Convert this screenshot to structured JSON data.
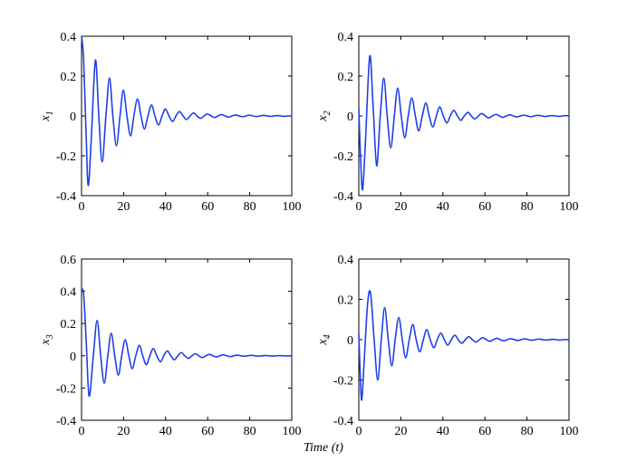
{
  "figure": {
    "shared_xlabel": "Time (t)",
    "line_color": "#1f3fe8"
  },
  "chart_data": [
    {
      "type": "line",
      "ylabel": "x",
      "ylabel_sub": "1",
      "xlim": [
        0,
        100
      ],
      "ylim": [
        -0.4,
        0.4
      ],
      "xticks": [
        0,
        20,
        40,
        60,
        80,
        100
      ],
      "yticks": [
        -0.4,
        -0.2,
        0,
        0.2,
        0.4
      ],
      "xtick_labels": [
        "0",
        "20",
        "40",
        "60",
        "80",
        "100"
      ],
      "ytick_labels": [
        "-0.4",
        "-0.2",
        "0",
        "0.2",
        "0.4"
      ],
      "grid": false,
      "series": [
        {
          "x": [
            0,
            1,
            2.2,
            3.2,
            4.7,
            6.6,
            8.2,
            9.8,
            11.6,
            13.3,
            14.9,
            16.6,
            18.3,
            19.9,
            21.6,
            23.3,
            24.9,
            26.6,
            28.3,
            29.9,
            31.6,
            33.3,
            34.9,
            36.6,
            38.3,
            39.9,
            41.6,
            43.3,
            44.9,
            46.6,
            48.3,
            49.9,
            51.6,
            53.3,
            54.9,
            56.6,
            58.3,
            59.9,
            61.6,
            63.3,
            64.9,
            66.6,
            68.3,
            69.9,
            71.6,
            73.3,
            74.9,
            76.6,
            78.3,
            79.9,
            81.6,
            83.3,
            84.9,
            86.6,
            88.3,
            89.9,
            91.6,
            93.3,
            94.9,
            96.6,
            98.3,
            100
          ],
          "y": [
            0.4,
            0.28,
            -0.1,
            -0.35,
            -0.1,
            0.28,
            0.0,
            -0.23,
            0.0,
            0.19,
            0.0,
            -0.15,
            0.0,
            0.13,
            0.0,
            -0.1,
            0.0,
            0.085,
            0.0,
            -0.065,
            0.0,
            0.055,
            0.0,
            -0.045,
            0.0,
            0.035,
            0.0,
            -0.028,
            0.0,
            0.022,
            0.0,
            -0.018,
            0.0,
            0.015,
            0.0,
            -0.012,
            0.0,
            0.01,
            0.0,
            -0.008,
            0.0,
            0.007,
            0.0,
            -0.006,
            0.0,
            0.005,
            0.0,
            -0.004,
            0.0,
            0.004,
            0.0,
            -0.003,
            0.0,
            0.003,
            0.0,
            -0.002,
            0.0,
            0.002,
            0.0,
            -0.002,
            0.0,
            0.0
          ]
        }
      ]
    },
    {
      "type": "line",
      "ylabel": "x",
      "ylabel_sub": "2",
      "xlim": [
        0,
        100
      ],
      "ylim": [
        -0.4,
        0.4
      ],
      "xticks": [
        0,
        20,
        40,
        60,
        80,
        100
      ],
      "yticks": [
        -0.4,
        -0.2,
        0,
        0.2,
        0.4
      ],
      "xtick_labels": [
        "0",
        "20",
        "40",
        "60",
        "80",
        "100"
      ],
      "ytick_labels": [
        "-0.4",
        "-0.2",
        "0",
        "0.2",
        "0.4"
      ],
      "grid": false,
      "series": [
        {
          "x": [
            0,
            0.8,
            1.8,
            3.2,
            5.2,
            6.8,
            8.5,
            10.2,
            11.9,
            13.5,
            15.2,
            16.9,
            18.5,
            20.2,
            21.9,
            23.5,
            25.2,
            26.9,
            28.5,
            30.2,
            31.9,
            33.5,
            35.2,
            36.9,
            38.5,
            40.2,
            41.9,
            43.5,
            45.2,
            46.9,
            48.5,
            50.2,
            51.9,
            53.5,
            55.2,
            56.9,
            58.5,
            60.2,
            61.9,
            63.5,
            65.2,
            66.9,
            68.5,
            70.2,
            71.9,
            73.5,
            75.2,
            76.9,
            78.5,
            80.2,
            81.9,
            83.5,
            85.2,
            86.9,
            88.5,
            90.2,
            91.9,
            93.5,
            95.2,
            96.9,
            98.5,
            100
          ],
          "y": [
            0.04,
            -0.2,
            -0.37,
            -0.12,
            0.3,
            0.05,
            -0.25,
            0.0,
            0.19,
            0.0,
            -0.16,
            0.0,
            0.14,
            0.0,
            -0.11,
            0.0,
            0.09,
            0.0,
            -0.075,
            0.0,
            0.065,
            0.0,
            -0.055,
            0.0,
            0.045,
            0.0,
            -0.035,
            0.0,
            0.028,
            0.0,
            -0.022,
            0.0,
            0.018,
            0.0,
            -0.015,
            0.0,
            0.012,
            0.0,
            -0.01,
            0.0,
            0.008,
            0.0,
            -0.007,
            0.0,
            0.006,
            0.0,
            -0.005,
            0.0,
            0.004,
            0.0,
            -0.004,
            0.0,
            0.003,
            0.0,
            -0.003,
            0.0,
            0.002,
            0.0,
            -0.002,
            0.0,
            0.002,
            0.0
          ]
        }
      ]
    },
    {
      "type": "line",
      "ylabel": "x",
      "ylabel_sub": "3",
      "xlim": [
        0,
        100
      ],
      "ylim": [
        -0.4,
        0.6
      ],
      "xticks": [
        0,
        20,
        40,
        60,
        80,
        100
      ],
      "yticks": [
        -0.4,
        -0.2,
        0,
        0.2,
        0.4,
        0.6
      ],
      "xtick_labels": [
        "0",
        "20",
        "40",
        "60",
        "80",
        "100"
      ],
      "ytick_labels": [
        "-0.4",
        "-0.2",
        "0",
        "0.2",
        "0.4",
        "0.6"
      ],
      "grid": false,
      "series": [
        {
          "x": [
            0,
            1,
            2.2,
            3.6,
            5.6,
            7.4,
            9.1,
            10.8,
            12.5,
            14.1,
            15.8,
            17.5,
            19.1,
            20.8,
            22.5,
            24.1,
            25.8,
            27.5,
            29.1,
            30.8,
            32.5,
            34.1,
            35.8,
            37.5,
            39.1,
            40.8,
            42.5,
            44.1,
            45.8,
            47.5,
            49.1,
            50.8,
            52.5,
            54.1,
            55.8,
            57.5,
            59.1,
            60.8,
            62.5,
            64.1,
            65.8,
            67.5,
            69.1,
            70.8,
            72.5,
            74.1,
            75.8,
            77.5,
            79.1,
            80.8,
            82.5,
            84.1,
            85.8,
            87.5,
            89.1,
            90.8,
            92.5,
            94.1,
            95.8,
            97.5,
            99.1,
            100
          ],
          "y": [
            0.41,
            0.38,
            0.1,
            -0.25,
            0.0,
            0.22,
            0.0,
            -0.17,
            0.0,
            0.14,
            0.0,
            -0.12,
            0.0,
            0.1,
            0.0,
            -0.08,
            0.0,
            0.065,
            0.0,
            -0.055,
            0.0,
            0.045,
            0.0,
            -0.038,
            0.0,
            0.03,
            0.0,
            -0.025,
            0.0,
            0.02,
            0.0,
            -0.016,
            0.0,
            0.013,
            0.0,
            -0.011,
            0.0,
            0.009,
            0.0,
            -0.007,
            0.0,
            0.006,
            0.0,
            -0.005,
            0.0,
            0.004,
            0.0,
            -0.003,
            0.0,
            0.003,
            0.0,
            -0.002,
            0.0,
            0.002,
            0.0,
            -0.002,
            0.0,
            0.001,
            0.0,
            -0.001,
            0.0,
            0.0
          ]
        }
      ]
    },
    {
      "type": "line",
      "ylabel": "x",
      "ylabel_sub": "4",
      "xlim": [
        0,
        100
      ],
      "ylim": [
        -0.4,
        0.4
      ],
      "xticks": [
        0,
        20,
        40,
        60,
        80,
        100
      ],
      "yticks": [
        -0.4,
        -0.2,
        0,
        0.2,
        0.4
      ],
      "xtick_labels": [
        "0",
        "20",
        "40",
        "60",
        "80",
        "100"
      ],
      "ytick_labels": [
        "-0.4",
        "-0.2",
        "0",
        "0.2",
        "0.4"
      ],
      "grid": false,
      "series": [
        {
          "x": [
            0,
            0.6,
            1.4,
            2.6,
            4.2,
            5.6,
            7.3,
            9.0,
            10.7,
            12.3,
            14.0,
            15.7,
            17.3,
            19.0,
            20.7,
            22.3,
            24.0,
            25.7,
            27.3,
            29.0,
            30.7,
            32.3,
            34.0,
            35.7,
            37.3,
            39.0,
            40.7,
            42.3,
            44.0,
            45.7,
            47.3,
            49.0,
            50.7,
            52.3,
            54.0,
            55.7,
            57.3,
            59.0,
            60.7,
            62.3,
            64.0,
            65.7,
            67.3,
            69.0,
            70.7,
            72.3,
            74.0,
            75.7,
            77.3,
            79.0,
            80.7,
            82.3,
            84.0,
            85.7,
            87.3,
            89.0,
            90.7,
            92.3,
            94.0,
            95.7,
            97.3,
            100
          ],
          "y": [
            0.03,
            -0.15,
            -0.3,
            -0.1,
            0.18,
            0.23,
            0.0,
            -0.2,
            0.0,
            0.16,
            0.0,
            -0.13,
            0.0,
            0.11,
            0.0,
            -0.09,
            0.0,
            0.075,
            0.0,
            -0.06,
            0.0,
            0.05,
            0.0,
            -0.04,
            0.0,
            0.033,
            0.0,
            -0.027,
            0.0,
            0.022,
            0.0,
            -0.018,
            0.0,
            0.015,
            0.0,
            -0.012,
            0.0,
            0.01,
            0.0,
            -0.008,
            0.0,
            0.007,
            0.0,
            -0.006,
            0.0,
            0.005,
            0.0,
            -0.004,
            0.0,
            0.004,
            0.0,
            -0.003,
            0.0,
            0.003,
            0.0,
            -0.002,
            0.0,
            0.002,
            0.0,
            -0.002,
            0.0,
            0.0
          ]
        }
      ]
    }
  ]
}
